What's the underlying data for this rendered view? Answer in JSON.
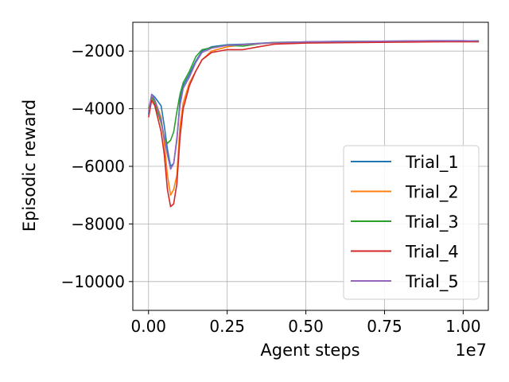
{
  "chart_data": {
    "type": "line",
    "title": "",
    "xlabel": "Agent steps",
    "ylabel": "Episodic reward",
    "x_offset_label": "1e7",
    "xlim": [
      -0.05,
      1.08
    ],
    "ylim": [
      -11000,
      -1000
    ],
    "grid": true,
    "legend_position": "lower-right",
    "x_unit_multiplier": 10000000,
    "xticks": [
      0.0,
      0.25,
      0.5,
      0.75,
      1.0
    ],
    "xtick_labels": [
      "0.00",
      "0.25",
      "0.50",
      "0.75",
      "1.00"
    ],
    "yticks": [
      -10000,
      -8000,
      -6000,
      -4000,
      -2000
    ],
    "ytick_labels": [
      "−10000",
      "−8000",
      "−6000",
      "−4000",
      "−2000"
    ],
    "series": [
      {
        "name": "Trial_1",
        "color": "#1f77b4",
        "points": [
          [
            0.0,
            -4200
          ],
          [
            0.01,
            -3500
          ],
          [
            0.02,
            -3600
          ],
          [
            0.04,
            -3900
          ],
          [
            0.05,
            -4600
          ],
          [
            0.06,
            -5400
          ],
          [
            0.07,
            -6000
          ],
          [
            0.08,
            -5900
          ],
          [
            0.09,
            -5100
          ],
          [
            0.1,
            -3700
          ],
          [
            0.11,
            -3200
          ],
          [
            0.13,
            -2800
          ],
          [
            0.15,
            -2350
          ],
          [
            0.17,
            -2000
          ],
          [
            0.2,
            -1850
          ],
          [
            0.25,
            -1780
          ],
          [
            0.3,
            -1760
          ],
          [
            0.35,
            -1730
          ],
          [
            0.4,
            -1700
          ],
          [
            0.5,
            -1680
          ],
          [
            0.6,
            -1660
          ],
          [
            0.7,
            -1660
          ],
          [
            0.8,
            -1650
          ],
          [
            0.9,
            -1640
          ],
          [
            1.0,
            -1640
          ],
          [
            1.05,
            -1650
          ]
        ]
      },
      {
        "name": "Trial_2",
        "color": "#ff7f0e",
        "points": [
          [
            0.0,
            -4000
          ],
          [
            0.01,
            -3600
          ],
          [
            0.02,
            -3700
          ],
          [
            0.04,
            -4300
          ],
          [
            0.05,
            -5200
          ],
          [
            0.06,
            -6300
          ],
          [
            0.07,
            -7000
          ],
          [
            0.08,
            -6800
          ],
          [
            0.09,
            -6300
          ],
          [
            0.1,
            -4600
          ],
          [
            0.11,
            -3800
          ],
          [
            0.13,
            -3100
          ],
          [
            0.15,
            -2700
          ],
          [
            0.17,
            -2300
          ],
          [
            0.2,
            -2000
          ],
          [
            0.25,
            -1850
          ],
          [
            0.3,
            -1780
          ],
          [
            0.35,
            -1740
          ],
          [
            0.4,
            -1720
          ],
          [
            0.5,
            -1690
          ],
          [
            0.6,
            -1680
          ],
          [
            0.7,
            -1670
          ],
          [
            0.8,
            -1660
          ],
          [
            0.9,
            -1650
          ],
          [
            1.0,
            -1650
          ],
          [
            1.05,
            -1660
          ]
        ]
      },
      {
        "name": "Trial_3",
        "color": "#2ca02c",
        "points": [
          [
            0.0,
            -4000
          ],
          [
            0.01,
            -3600
          ],
          [
            0.02,
            -3800
          ],
          [
            0.04,
            -4500
          ],
          [
            0.05,
            -5000
          ],
          [
            0.06,
            -5200
          ],
          [
            0.07,
            -5100
          ],
          [
            0.08,
            -4800
          ],
          [
            0.09,
            -4100
          ],
          [
            0.1,
            -3500
          ],
          [
            0.11,
            -3100
          ],
          [
            0.13,
            -2700
          ],
          [
            0.15,
            -2200
          ],
          [
            0.17,
            -1950
          ],
          [
            0.2,
            -1880
          ],
          [
            0.25,
            -1800
          ],
          [
            0.3,
            -1830
          ],
          [
            0.35,
            -1750
          ],
          [
            0.4,
            -1700
          ],
          [
            0.5,
            -1690
          ],
          [
            0.6,
            -1670
          ],
          [
            0.7,
            -1660
          ],
          [
            0.8,
            -1660
          ],
          [
            0.9,
            -1650
          ],
          [
            1.0,
            -1650
          ],
          [
            1.05,
            -1640
          ]
        ]
      },
      {
        "name": "Trial_4",
        "color": "#d62728",
        "points": [
          [
            0.0,
            -4300
          ],
          [
            0.01,
            -3700
          ],
          [
            0.02,
            -3900
          ],
          [
            0.04,
            -4800
          ],
          [
            0.05,
            -5600
          ],
          [
            0.06,
            -6800
          ],
          [
            0.07,
            -7400
          ],
          [
            0.08,
            -7300
          ],
          [
            0.09,
            -6600
          ],
          [
            0.1,
            -5000
          ],
          [
            0.11,
            -4000
          ],
          [
            0.13,
            -3200
          ],
          [
            0.15,
            -2700
          ],
          [
            0.17,
            -2300
          ],
          [
            0.2,
            -2050
          ],
          [
            0.25,
            -1950
          ],
          [
            0.3,
            -1950
          ],
          [
            0.35,
            -1850
          ],
          [
            0.4,
            -1760
          ],
          [
            0.5,
            -1720
          ],
          [
            0.6,
            -1710
          ],
          [
            0.7,
            -1700
          ],
          [
            0.8,
            -1690
          ],
          [
            0.9,
            -1680
          ],
          [
            1.0,
            -1670
          ],
          [
            1.05,
            -1680
          ]
        ]
      },
      {
        "name": "Trial_5",
        "color": "#9467bd",
        "points": [
          [
            0.0,
            -4100
          ],
          [
            0.01,
            -3500
          ],
          [
            0.02,
            -3700
          ],
          [
            0.04,
            -4400
          ],
          [
            0.05,
            -5000
          ],
          [
            0.06,
            -5600
          ],
          [
            0.07,
            -6100
          ],
          [
            0.08,
            -5900
          ],
          [
            0.09,
            -5000
          ],
          [
            0.1,
            -3900
          ],
          [
            0.11,
            -3300
          ],
          [
            0.13,
            -2900
          ],
          [
            0.15,
            -2400
          ],
          [
            0.17,
            -2050
          ],
          [
            0.2,
            -1900
          ],
          [
            0.25,
            -1800
          ],
          [
            0.3,
            -1780
          ],
          [
            0.35,
            -1740
          ],
          [
            0.4,
            -1710
          ],
          [
            0.5,
            -1680
          ],
          [
            0.6,
            -1670
          ],
          [
            0.7,
            -1660
          ],
          [
            0.8,
            -1650
          ],
          [
            0.9,
            -1640
          ],
          [
            1.0,
            -1640
          ],
          [
            1.05,
            -1650
          ]
        ]
      }
    ]
  }
}
